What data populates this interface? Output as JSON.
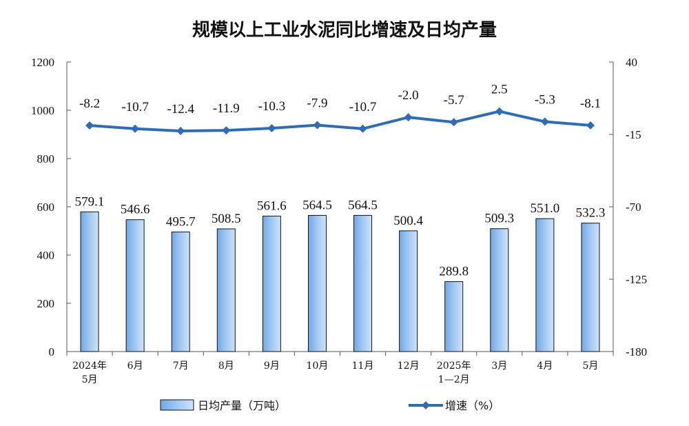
{
  "chart_data": {
    "type": "bar+line",
    "title": "规模以上工业水泥同比增速及日均产量",
    "categories": [
      [
        "2024年",
        "5月"
      ],
      [
        "6月"
      ],
      [
        "7月"
      ],
      [
        "8月"
      ],
      [
        "9月"
      ],
      [
        "10月"
      ],
      [
        "11月"
      ],
      [
        "12月"
      ],
      [
        "2025年",
        "1—2月"
      ],
      [
        "3月"
      ],
      [
        "4月"
      ],
      [
        "5月"
      ]
    ],
    "series": [
      {
        "name": "日均产量（万吨）",
        "type": "bar",
        "axis": "left",
        "values": [
          579.1,
          546.6,
          495.7,
          508.5,
          561.6,
          564.5,
          564.5,
          500.4,
          289.8,
          509.3,
          551.0,
          532.3
        ],
        "labels": [
          "579.1",
          "546.6",
          "495.7",
          "508.5",
          "561.6",
          "564.5",
          "564.5",
          "500.4",
          "289.8",
          "509.3",
          "551.0",
          "532.3"
        ],
        "color": "#9ec6f0"
      },
      {
        "name": "增速（%）",
        "type": "line",
        "axis": "right",
        "values": [
          -8.2,
          -10.7,
          -12.4,
          -11.9,
          -10.3,
          -7.9,
          -10.7,
          -2.0,
          -5.7,
          2.5,
          -5.3,
          -8.1
        ],
        "labels": [
          "-8.2",
          "-10.7",
          "-12.4",
          "-11.9",
          "-10.3",
          "-7.9",
          "-10.7",
          "-2.0",
          "-5.7",
          "2.5",
          "-5.3",
          "-8.1"
        ],
        "color": "#2e6db5"
      }
    ],
    "y_left": {
      "range": [
        0,
        1200
      ],
      "ticks": [
        "0",
        "200",
        "400",
        "600",
        "800",
        "1000",
        "1200"
      ]
    },
    "y_right": {
      "range": [
        -180,
        40
      ],
      "ticks": [
        "-180",
        "-125",
        "-70",
        "-15",
        "40"
      ]
    },
    "grid": false,
    "legend_position": "bottom"
  }
}
